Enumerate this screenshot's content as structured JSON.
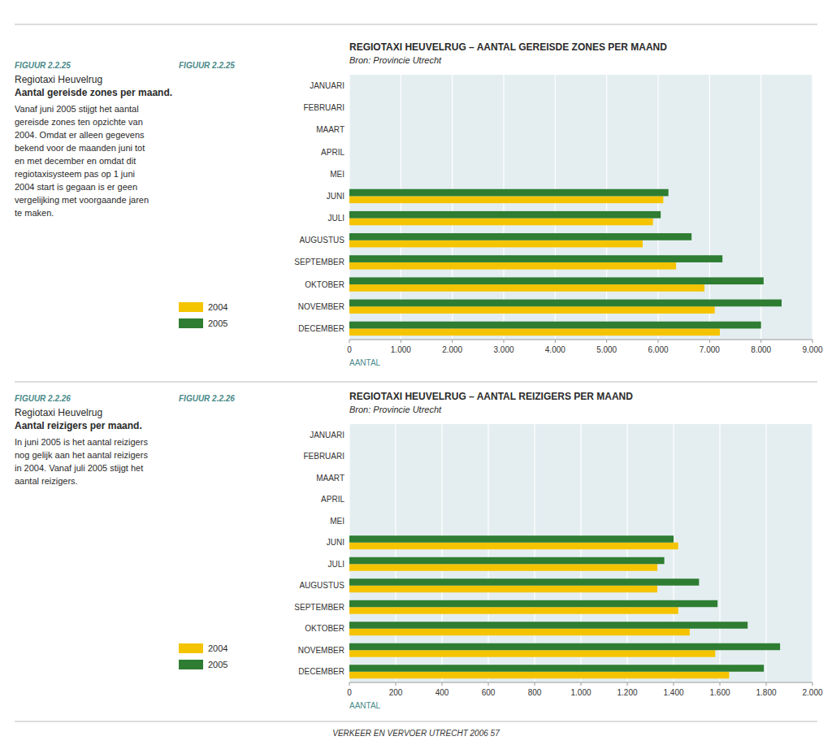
{
  "chart_data": [
    {
      "type": "bar",
      "orientation": "horizontal",
      "grid": true,
      "legend": "left",
      "title": "REGIOTAXI HEUVELRUG – AANTAL GEREISDE ZONES PER MAAND",
      "subtitle": "Bron: Provincie Utrecht",
      "x_label": "AANTAL",
      "categories": [
        "JANUARI",
        "FEBRUARI",
        "MAART",
        "APRIL",
        "MEI",
        "JUNI",
        "JULI",
        "AUGUSTUS",
        "SEPTEMBER",
        "OKTOBER",
        "NOVEMBER",
        "DECEMBER"
      ],
      "series": [
        {
          "name": "2004",
          "color": "#F5C400",
          "values": [
            0,
            0,
            0,
            0,
            0,
            6100,
            5900,
            5700,
            6350,
            6900,
            7100,
            7200
          ]
        },
        {
          "name": "2005",
          "color": "#2E7D32",
          "values": [
            0,
            0,
            0,
            0,
            0,
            6200,
            6050,
            6650,
            7250,
            8050,
            8400,
            8000
          ]
        }
      ],
      "xlim": [
        0,
        9000
      ],
      "xticks": [
        0,
        {
          "value": 1000,
          "label": "1.000"
        },
        {
          "value": 2000,
          "label": "2.000"
        },
        {
          "value": 3000,
          "label": "3.000"
        },
        {
          "value": 4000,
          "label": "4.000"
        },
        {
          "value": 5000,
          "label": "5.000"
        },
        {
          "value": 6000,
          "label": "6.000"
        },
        {
          "value": 7000,
          "label": "7.000"
        },
        {
          "value": 8000,
          "label": "8.000"
        },
        {
          "value": 9000,
          "label": "9.000"
        }
      ],
      "annotations": [
        "FIGUUR 2.2.25",
        "FIGUUR 2.2.25",
        "Regiotaxi Heuvelrug",
        "Aantal gereisde zones per maand.",
        "Vanaf juni 2005 stijgt het aantal\ngereisde zones ten opzichte van\n2004. Omdat er alleen gegevens\nbekend voor de maanden juni tot\nen met december en omdat dit\nregiotaxisysteem pas op 1 juni\n2004 start is gegaan is er geen\nvergelijking met voorgaande jaren\nte maken."
      ]
    },
    {
      "type": "bar",
      "orientation": "horizontal",
      "grid": true,
      "legend": "left",
      "title": "REGIOTAXI HEUVELRUG – AANTAL REIZIGERS PER MAAND",
      "subtitle": "Bron: Provincie Utrecht",
      "x_label": "AANTAL",
      "categories": [
        "JANUARI",
        "FEBRUARI",
        "MAART",
        "APRIL",
        "MEI",
        "JUNI",
        "JULI",
        "AUGUSTUS",
        "SEPTEMBER",
        "OKTOBER",
        "NOVEMBER",
        "DECEMBER"
      ],
      "series": [
        {
          "name": "2004",
          "color": "#F5C400",
          "values": [
            0,
            0,
            0,
            0,
            0,
            1420,
            1330,
            1330,
            1420,
            1470,
            1580,
            1640
          ]
        },
        {
          "name": "2005",
          "color": "#2E7D32",
          "values": [
            0,
            0,
            0,
            0,
            0,
            1400,
            1360,
            1510,
            1590,
            1720,
            1860,
            1790
          ]
        }
      ],
      "xlim": [
        0,
        2000
      ],
      "xticks": [
        0,
        200,
        400,
        600,
        800,
        {
          "value": 1000,
          "label": "1.000"
        },
        {
          "value": 1200,
          "label": "1.200"
        },
        {
          "value": 1400,
          "label": "1.400"
        },
        {
          "value": 1600,
          "label": "1.600"
        },
        {
          "value": 1800,
          "label": "1.800"
        },
        {
          "value": 2000,
          "label": "2.000"
        }
      ],
      "annotations": [
        "FIGUUR 2.2.26",
        "FIGUUR 2.2.26",
        "Regiotaxi Heuvelrug",
        "Aantal reizigers per maand.",
        "In juni 2005 is het aantal reizigers\nnog gelijk aan het aantal reizigers\nin 2004. Vanaf juli 2005 stijgt het\naantal reizigers.",
        "VERKEER EN VERVOER UTRECHT 2006        57"
      ]
    }
  ]
}
